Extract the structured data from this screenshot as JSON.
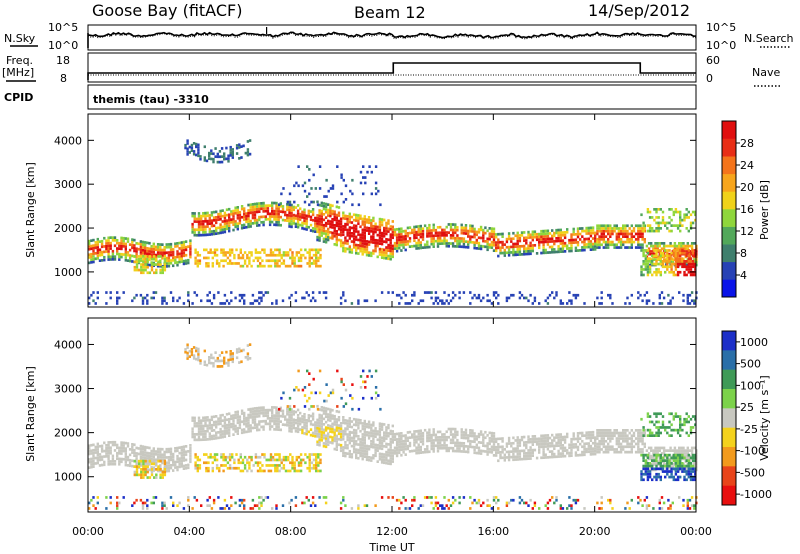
{
  "header": {
    "station": "Goose Bay (fitACF)",
    "beam": "Beam 12",
    "date": "14/Sep/2012"
  },
  "top_panels": {
    "nsky_label": "N.Sky",
    "nsearch_label": "N.Search",
    "freq_label_1": "Freq.",
    "freq_label_2": "[MHz]",
    "nave_label": "Nave",
    "cpid_label": "CPID",
    "cpid_text": "themis (tau) -3310",
    "noise_left_ticks": [
      "10^5",
      "10^0"
    ],
    "noise_right_ticks": [
      "10^5",
      "10^0"
    ],
    "freq_left_ticks": [
      "18",
      "8"
    ],
    "freq_right_ticks": [
      "60",
      "0"
    ]
  },
  "chart_data": [
    {
      "type": "heatmap",
      "name": "power",
      "ylabel": "Slant Range [km]",
      "y_ticks": [
        "1000",
        "2000",
        "3000",
        "4000"
      ],
      "y_tick_values": [
        1000,
        2000,
        3000,
        4000
      ],
      "ylim": [
        200,
        4600
      ],
      "xlim_hours": [
        0,
        24
      ],
      "colorbar": {
        "label": "Power [dB]",
        "ticks": [
          "4",
          "8",
          "12",
          "16",
          "20",
          "24",
          "28"
        ],
        "range": [
          0,
          32
        ],
        "colors": [
          "#0a14e8",
          "#2742b5",
          "#3f7f6d",
          "#52a85a",
          "#8fd63c",
          "#f0d21a",
          "#f7a51c",
          "#f4741b",
          "#e82e16",
          "#e00f0f"
        ]
      }
    },
    {
      "type": "heatmap",
      "name": "velocity",
      "ylabel": "Slant Range [km]",
      "y_ticks": [
        "1000",
        "2000",
        "3000",
        "4000"
      ],
      "y_tick_values": [
        1000,
        2000,
        3000,
        4000
      ],
      "ylim": [
        200,
        4600
      ],
      "xlim_hours": [
        0,
        24
      ],
      "colorbar": {
        "label": "Velocity [m s⁻¹]",
        "ticks": [
          "1000",
          "500",
          "100",
          "25",
          "-25",
          "-100",
          "-500",
          "-1000"
        ],
        "colors": [
          "#1c2fc8",
          "#2a6fa8",
          "#3f9a57",
          "#7cd24a",
          "#c8c8c0",
          "#f4d21c",
          "#f29a1c",
          "#e8441a",
          "#e80f0f"
        ]
      }
    }
  ],
  "time_axis": {
    "label": "Time UT",
    "ticks": [
      "00:00",
      "04:00",
      "08:00",
      "12:00",
      "16:00",
      "20:00",
      "00:00"
    ],
    "tick_hours": [
      0,
      4,
      8,
      12,
      16,
      20,
      24
    ]
  }
}
